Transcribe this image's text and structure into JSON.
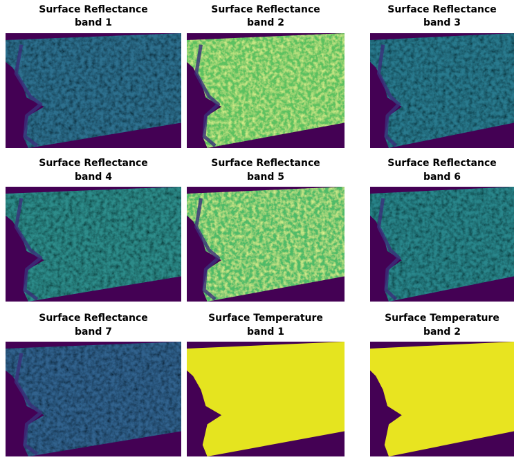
{
  "panels": [
    {
      "title": [
        "Surface Reflectance",
        "band 1"
      ],
      "color": "#2f6f8e"
    },
    {
      "title": [
        "Surface Reflectance",
        "band 2"
      ],
      "color": "#5cc160"
    },
    {
      "title": [
        "Surface Reflectance",
        "band 3"
      ],
      "color": "#2c7a8e"
    },
    {
      "title": [
        "Surface Reflectance",
        "band 4"
      ],
      "color": "#2e8c8a"
    },
    {
      "title": [
        "Surface Reflectance",
        "band 5"
      ],
      "color": "#4fbb68"
    },
    {
      "title": [
        "Surface Reflectance",
        "band 6"
      ],
      "color": "#2a868b"
    },
    {
      "title": [
        "Surface Reflectance",
        "band 7"
      ],
      "color": "#31628d"
    },
    {
      "title": [
        "Surface Temperature",
        "band 1"
      ],
      "color": "#e5e41f"
    },
    {
      "title": [
        "Surface Temperature",
        "band 2"
      ],
      "color": "#e8e420"
    }
  ]
}
